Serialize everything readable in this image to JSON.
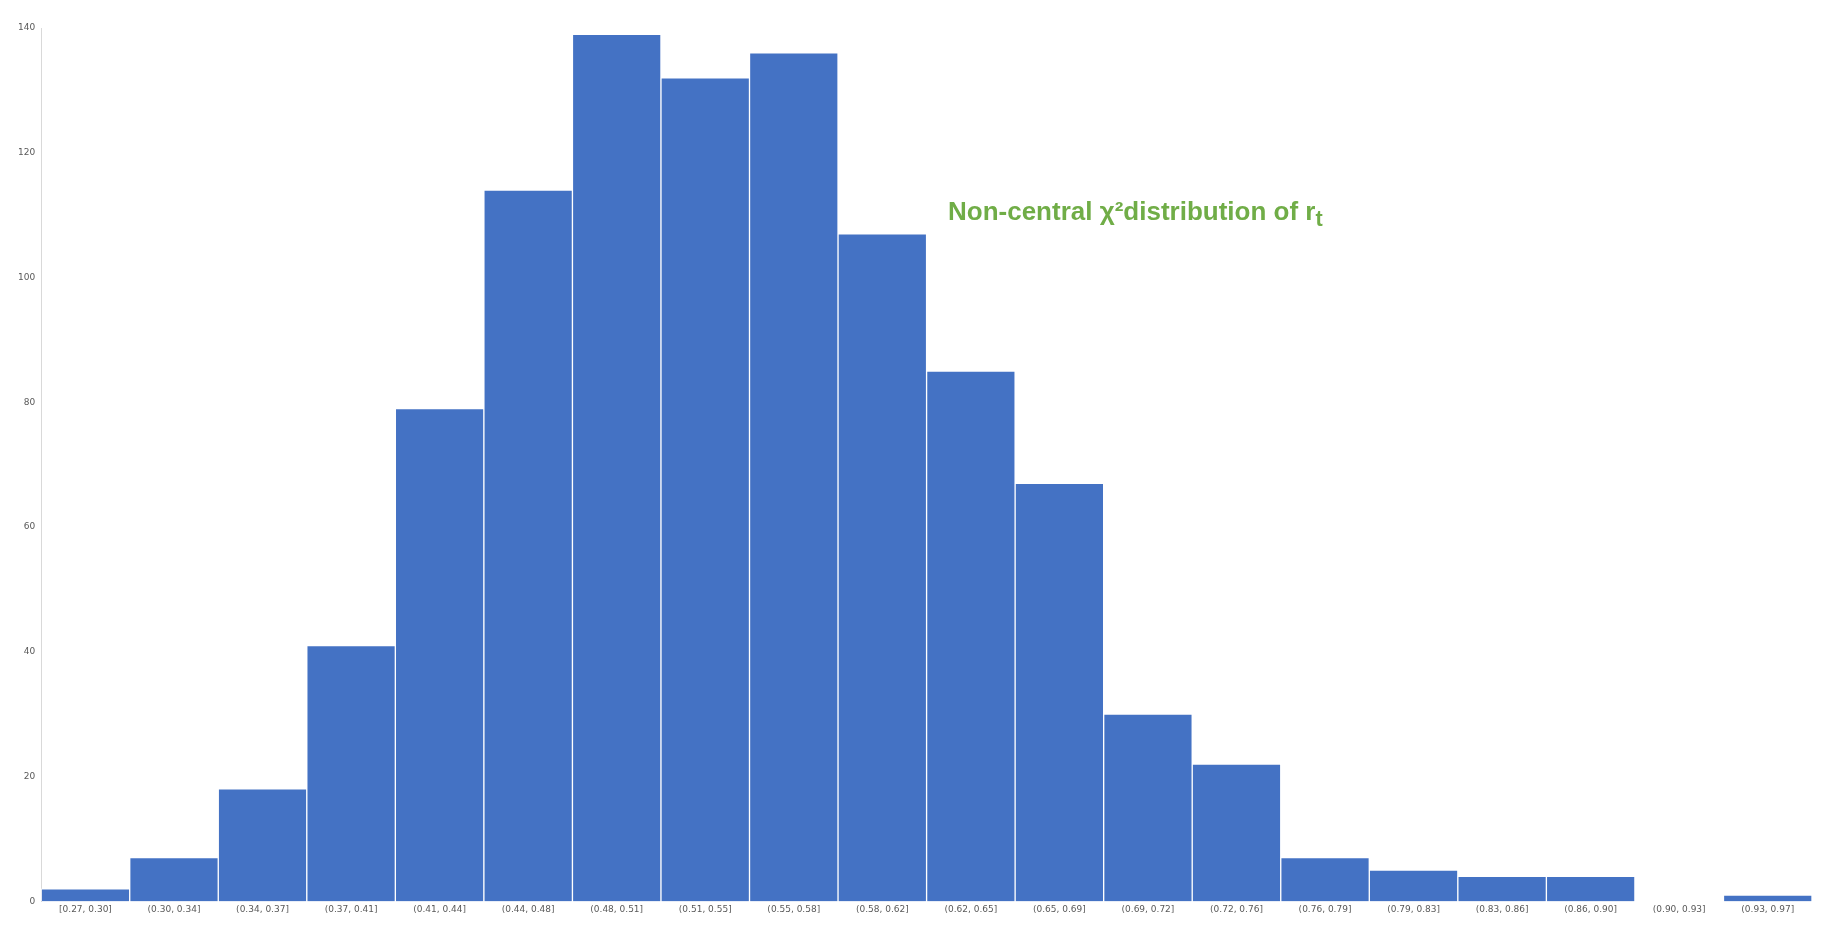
{
  "chart_data": {
    "type": "bar",
    "title": "Non-central χ²distribution of r$_{t}$",
    "categories": [
      "[0.27, 0.30]",
      "(0.30, 0.34]",
      "(0.34, 0.37]",
      "(0.37, 0.41]",
      "(0.41, 0.44]",
      "(0.44, 0.48]",
      "(0.48, 0.51]",
      "(0.51, 0.55]",
      "(0.55, 0.58]",
      "(0.58, 0.62]",
      "(0.62, 0.65]",
      "(0.65, 0.69]",
      "(0.69, 0.72]",
      "(0.72, 0.76]",
      "(0.76, 0.79]",
      "(0.79, 0.83]",
      "(0.83, 0.86]",
      "(0.86, 0.90]",
      "(0.90, 0.93]",
      "(0.93, 0.97]"
    ],
    "values": [
      2,
      7,
      18,
      41,
      79,
      114,
      139,
      132,
      136,
      107,
      85,
      67,
      30,
      22,
      7,
      5,
      4,
      4,
      0,
      1
    ],
    "color": "#4472c4",
    "ylim": [
      0,
      140
    ],
    "yticks": [
      0,
      20,
      40,
      60,
      80,
      100,
      120,
      140
    ],
    "grid": false,
    "legend": false
  }
}
